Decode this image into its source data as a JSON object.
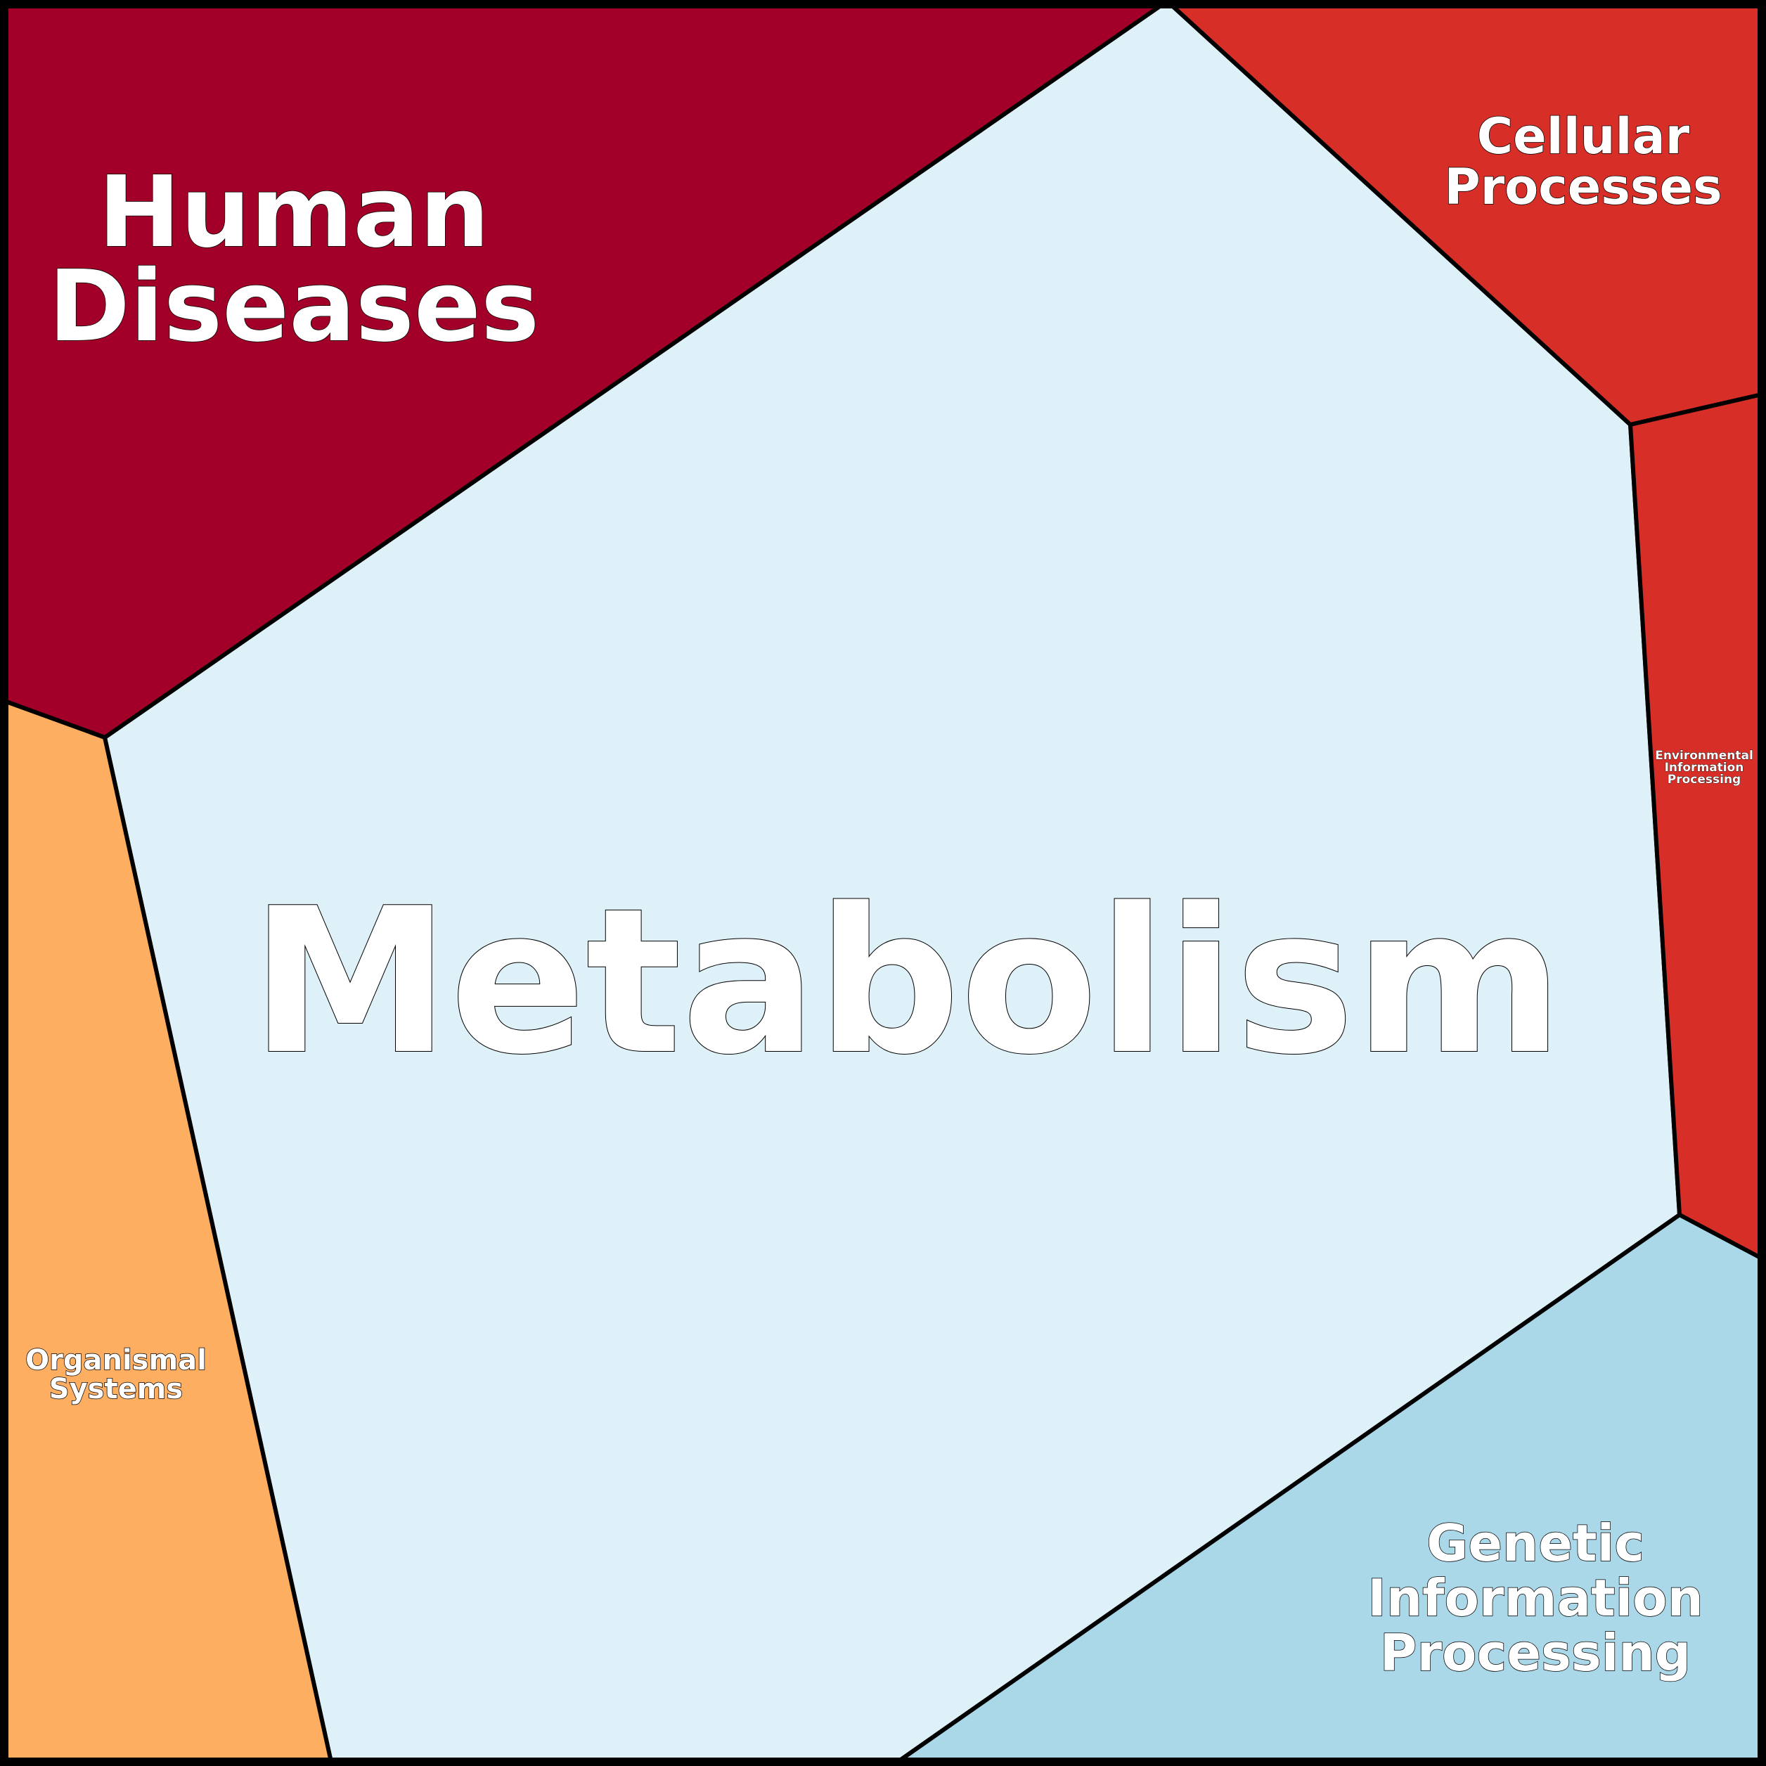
{
  "diagram": {
    "type": "voronoi-treemap",
    "colors": {
      "border": "#000000",
      "label_fill": "#ffffff",
      "label_outline": "#000000"
    },
    "regions": [
      {
        "key": "metabolism",
        "lines": [
          "Metabolism"
        ],
        "color": "#dff1f8"
      },
      {
        "key": "human_diseases",
        "lines": [
          "Human",
          "Diseases"
        ],
        "color": "#a20028"
      },
      {
        "key": "cellular_processes",
        "lines": [
          "Cellular",
          "Processes"
        ],
        "color": "#d72f27"
      },
      {
        "key": "environmental_information_processing",
        "lines": [
          "Environmental",
          "Information",
          "Processing"
        ],
        "color": "#d72f27"
      },
      {
        "key": "organismal_systems",
        "lines": [
          "Organismal",
          "Systems"
        ],
        "color": "#fdae61"
      },
      {
        "key": "genetic_information_processing",
        "lines": [
          "Genetic",
          "Information",
          "Processing"
        ],
        "color": "#abd8e9"
      }
    ]
  }
}
